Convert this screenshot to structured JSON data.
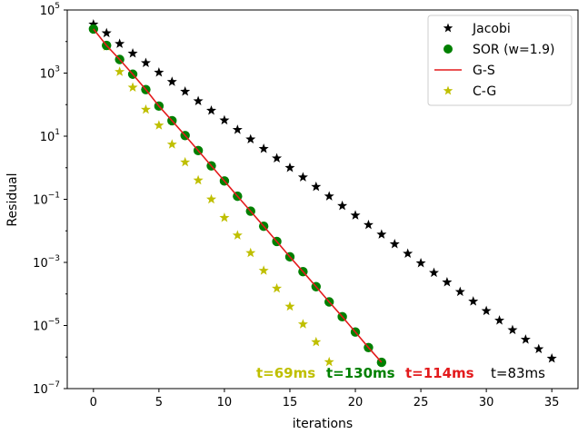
{
  "chart_data": {
    "type": "scatter",
    "title": "",
    "xlabel": "iterations",
    "ylabel": "Residual",
    "xlim": [
      -2,
      37
    ],
    "ylim": [
      1e-07,
      100000.0
    ],
    "yscale": "log",
    "xticks": [
      0,
      5,
      10,
      15,
      20,
      25,
      30,
      35
    ],
    "xtick_labels": [
      "0",
      "5",
      "10",
      "15",
      "20",
      "25",
      "30",
      "35"
    ],
    "yticks": [
      100000.0,
      1000.0,
      10.0,
      0.1,
      0.001,
      1e-05,
      1e-07
    ],
    "ytick_labels": [
      {
        "base": "10",
        "exp": "5"
      },
      {
        "base": "10",
        "exp": "3"
      },
      {
        "base": "10",
        "exp": "1"
      },
      {
        "base": "10",
        "exp": "−1"
      },
      {
        "base": "10",
        "exp": "−3"
      },
      {
        "base": "10",
        "exp": "−5"
      },
      {
        "base": "10",
        "exp": "−7"
      }
    ],
    "grid": false,
    "legend_position": "top-right",
    "series": [
      {
        "name": "Jacobi",
        "marker": "star",
        "color": "#000000",
        "x": [
          0,
          1,
          2,
          3,
          4,
          5,
          6,
          7,
          8,
          9,
          10,
          11,
          12,
          13,
          14,
          15,
          16,
          17,
          18,
          19,
          20,
          21,
          22,
          23,
          24,
          25,
          26,
          27,
          28,
          29,
          30,
          31,
          32,
          33,
          34,
          35
        ],
        "y": [
          35000.0,
          18500.0,
          8500.0,
          4200.0,
          2100.0,
          1050.0,
          530.0,
          260.0,
          130.0,
          65,
          32,
          16,
          8,
          4,
          2,
          1,
          0.5,
          0.25,
          0.125,
          0.062,
          0.031,
          0.0155,
          0.0077,
          0.0038,
          0.0019,
          0.00095,
          0.00047,
          0.000235,
          0.000117,
          5.8e-05,
          2.9e-05,
          1.45e-05,
          7.2e-06,
          3.6e-06,
          1.8e-06,
          9e-07
        ]
      },
      {
        "name": "SOR (w=1.9)",
        "marker": "circle",
        "color": "#008000",
        "x": [
          0,
          1,
          2,
          3,
          4,
          5,
          6,
          7,
          8,
          9,
          10,
          11,
          12,
          13,
          14,
          15,
          16,
          17,
          18,
          19,
          20,
          21,
          22
        ],
        "y": [
          25000.0,
          7500.0,
          2700.0,
          920.0,
          300.0,
          90,
          31,
          10.5,
          3.5,
          1.15,
          0.38,
          0.125,
          0.042,
          0.014,
          0.0046,
          0.0015,
          0.00051,
          0.00017,
          5.6e-05,
          1.9e-05,
          6.2e-06,
          2e-06,
          6.8e-07
        ]
      },
      {
        "name": "G-S",
        "marker": "line",
        "color": "#e31a1c",
        "x": [
          0,
          1,
          2,
          3,
          4,
          5,
          6,
          7,
          8,
          9,
          10,
          11,
          12,
          13,
          14,
          15,
          16,
          17,
          18,
          19,
          20,
          21,
          22
        ],
        "y": [
          25000.0,
          7500.0,
          2700.0,
          920.0,
          300.0,
          90,
          31,
          10.5,
          3.5,
          1.15,
          0.38,
          0.125,
          0.042,
          0.014,
          0.0046,
          0.0015,
          0.00051,
          0.00017,
          5.6e-05,
          1.9e-05,
          6.2e-06,
          2e-06,
          6.8e-07
        ]
      },
      {
        "name": "C-G",
        "marker": "star",
        "color": "#bfbf00",
        "x": [
          1,
          2,
          3,
          4,
          5,
          6,
          7,
          8,
          9,
          10,
          11,
          12,
          13,
          14,
          15,
          16,
          17,
          18
        ],
        "y": [
          7000.0,
          1100.0,
          350.0,
          70,
          22,
          5.5,
          1.5,
          0.4,
          0.1,
          0.026,
          0.0072,
          0.002,
          0.00055,
          0.00015,
          4e-05,
          1.1e-05,
          3e-06,
          7e-07
        ]
      }
    ],
    "annotations": [
      {
        "text": "t=69ms",
        "color": "#bfbf00"
      },
      {
        "text": "t=130ms",
        "color": "#008000"
      },
      {
        "text": "t=114ms",
        "color": "#e31a1c"
      },
      {
        "text": "t=83ms",
        "color": "#000000"
      }
    ]
  }
}
